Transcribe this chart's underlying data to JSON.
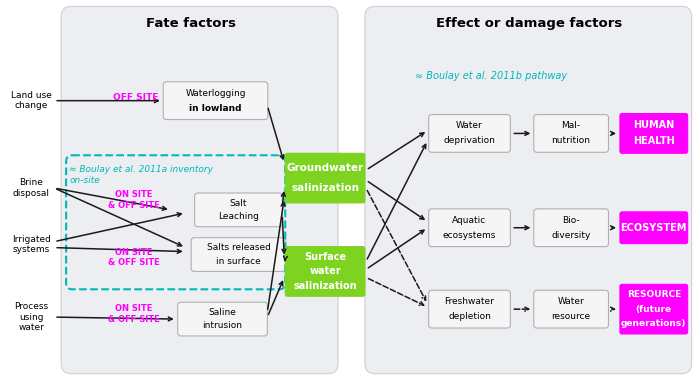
{
  "title_left": "Fate factors",
  "title_right": "Effect or damage factors",
  "note_boulay_left": "≈ Boulay et al. 2011a inventory\non-site",
  "note_boulay_right": "≈ Boulay et al. 2011b pathway",
  "sources": [
    "Land use\nchange",
    "Brine\ndisposal",
    "Irrigated\nsystems",
    "Process\nusing\nwater"
  ],
  "site_labels": [
    "OFF SITE",
    "ON SITE\n& OFF SITE",
    "ON SITE\n& OFF SITE",
    "ON SITE\n& OFF SITE"
  ],
  "intermediate_left": [
    "Waterlogging\nin lowland",
    "Salt\nLeaching",
    "Salts released\nin surface",
    "Saline\nintrusion"
  ],
  "intermediate_green": [
    "Groundwater\nsalinization",
    "Surface\nwater\nsalinization"
  ],
  "right1": [
    "Water\ndeprivation",
    "Aquatic\necosystems",
    "Freshwater\ndepletion"
  ],
  "right2": [
    "Mal-\nnutrition",
    "Bio-\ndiversity",
    "Water\nresource"
  ],
  "final_boxes": [
    "HUMAN\nHEALTH",
    "ECOSYSTEM",
    "RESOURCE\n(future\ngenerations)"
  ],
  "fate_bg": "#eceef2",
  "effect_bg": "#eceef2",
  "box_bg": "#f5f5f5",
  "box_border": "#b0b0b0",
  "green_color": "#7ed321",
  "magenta_color": "#ff00ff",
  "cyan_color": "#00b8b8",
  "white": "#ffffff",
  "black": "#1a1a1a"
}
